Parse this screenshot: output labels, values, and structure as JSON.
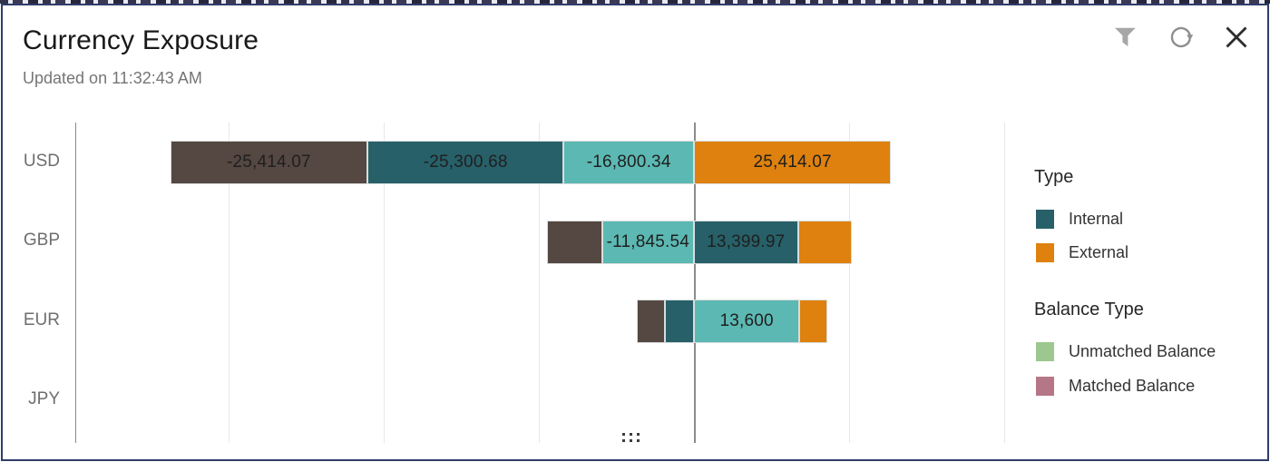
{
  "header": {
    "title": "Currency Exposure",
    "subtitle": "Updated on 11:32:43 AM"
  },
  "toolbar": {
    "filter_icon": "filter-funnel",
    "refresh_icon": "refresh-circular-arrow",
    "close_icon": "close-x"
  },
  "colors": {
    "brown": "#554741",
    "internal_teal": "#276069",
    "light_teal": "#5CB8B2",
    "external_orange": "#DE810E",
    "unmatched_green": "#9CC78E",
    "matched_mauve": "#B57787",
    "gridline": "#E8E8E8",
    "zero_line": "#8C8C8C",
    "axis_line": "#8A8A8A",
    "border_navy": "#303C6A"
  },
  "chart_data": {
    "type": "bar",
    "orientation": "horizontal",
    "stacked": true,
    "grid": "vertical-only",
    "units_per_gridline": 20000,
    "xlim": [
      -80000,
      40000
    ],
    "categories": [
      "USD",
      "GBP",
      "EUR",
      "JPY"
    ],
    "rows": [
      {
        "currency": "USD",
        "segments": [
          {
            "color": "brown",
            "value": -25414.07,
            "label": "-25,414.07"
          },
          {
            "color": "internal_teal",
            "value": -25300.68,
            "label": "-25,300.68"
          },
          {
            "color": "light_teal",
            "value": -16800.34,
            "label": "-16,800.34"
          },
          {
            "color": "external_orange",
            "value": 25414.07,
            "label": "25,414.07"
          }
        ]
      },
      {
        "currency": "GBP",
        "segments": [
          {
            "color": "brown",
            "value": -7100,
            "label": ""
          },
          {
            "color": "light_teal",
            "value": -11845.54,
            "label": "-11,845.54"
          },
          {
            "color": "internal_teal",
            "value": 13399.97,
            "label": "13,399.97"
          },
          {
            "color": "external_orange",
            "value": 7000,
            "label": ""
          }
        ]
      },
      {
        "currency": "EUR",
        "segments": [
          {
            "color": "brown",
            "value": -3650,
            "label": ""
          },
          {
            "color": "internal_teal",
            "value": -3700,
            "label": ""
          },
          {
            "color": "light_teal",
            "value": 13600,
            "label": "13,600"
          },
          {
            "color": "external_orange",
            "value": 3550,
            "label": ""
          }
        ]
      },
      {
        "currency": "JPY",
        "segments": []
      }
    ]
  },
  "legend": {
    "groups": [
      {
        "title": "Type",
        "items": [
          {
            "label": "Internal",
            "color": "internal_teal"
          },
          {
            "label": "External",
            "color": "external_orange"
          }
        ]
      },
      {
        "title": "Balance Type",
        "items": [
          {
            "label": "Unmatched Balance",
            "color": "unmatched_green"
          },
          {
            "label": "Matched Balance",
            "color": "matched_mauve"
          }
        ]
      }
    ]
  }
}
